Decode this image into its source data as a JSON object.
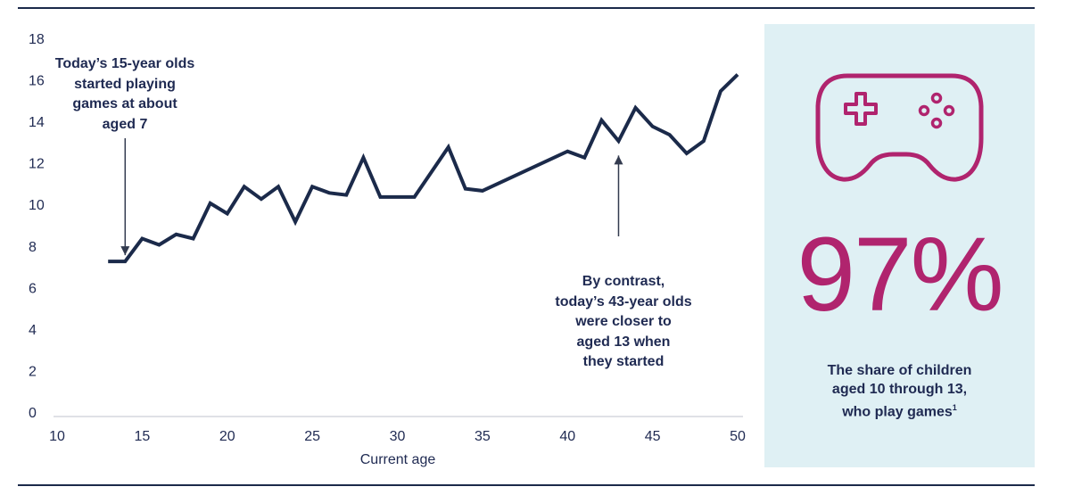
{
  "chart_data": {
    "type": "line",
    "xlabel": "Current age",
    "ylabel": "",
    "xlim": [
      10,
      50
    ],
    "ylim": [
      0,
      18
    ],
    "x_ticks": [
      "10",
      "15",
      "20",
      "25",
      "30",
      "35",
      "40",
      "45",
      "50"
    ],
    "y_ticks": [
      "0",
      "2",
      "4",
      "6",
      "8",
      "10",
      "12",
      "14",
      "16",
      "18"
    ],
    "grid": false,
    "series": [
      {
        "x": [
          13,
          14,
          15,
          16,
          17,
          18,
          19,
          20,
          21,
          22,
          23,
          24,
          25,
          26,
          27,
          28,
          29,
          31,
          33,
          34,
          35,
          40,
          41,
          42,
          43,
          44,
          45,
          46,
          47,
          48,
          49,
          50
        ],
        "values": [
          7.3,
          7.3,
          8.4,
          8.1,
          8.6,
          8.4,
          10.1,
          9.6,
          10.9,
          10.3,
          10.9,
          9.2,
          10.9,
          10.6,
          10.5,
          12.3,
          10.4,
          10.4,
          12.8,
          10.8,
          10.7,
          12.6,
          12.3,
          14.1,
          13.1,
          14.7,
          13.8,
          13.4,
          12.5,
          13.1,
          15.5,
          16.3
        ]
      }
    ],
    "annotations": [
      {
        "lines": [
          "Today’s 15-year olds",
          "started playing",
          "games at about",
          "aged 7"
        ],
        "arrow_direction": "down",
        "arrow_x": 14,
        "arrow_y": 7.6
      },
      {
        "lines": [
          "By contrast,",
          "today’s 43-year olds",
          "were closer to",
          "aged 13 when",
          "they started"
        ],
        "arrow_direction": "up",
        "arrow_x": 43,
        "arrow_y": 12.4
      }
    ]
  },
  "colors": {
    "line": "#1b2a4a",
    "accent": "#b0246e",
    "panel_bg": "#dff0f4",
    "text": "#1f2a52"
  },
  "panel": {
    "icon": "gamepad-icon",
    "big_stat": "97%",
    "description_lines": [
      "The share of children",
      "aged 10 through 13,",
      "who play games"
    ],
    "footnote_marker": "1"
  }
}
